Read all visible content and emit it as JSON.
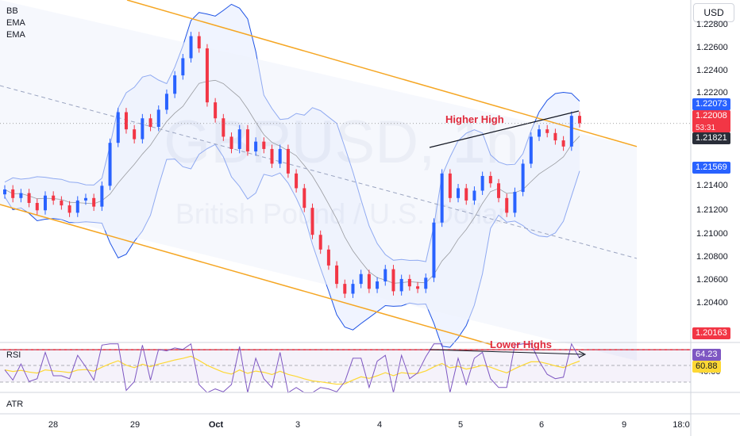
{
  "indicators": {
    "main": [
      "BB",
      "EMA",
      "EMA"
    ],
    "rsi_label": "RSI",
    "atr_label": "ATR"
  },
  "currency_button": "USD",
  "watermark": {
    "symbol": "GBPUSD, 1h",
    "name": "British Pound / U.S. Dollar"
  },
  "annotations": {
    "higher_high": "Higher High",
    "lower_highs": "Lower Highs"
  },
  "price_axis": [
    "1.22800",
    "1.22600",
    "1.22400",
    "1.22200",
    "1.21400",
    "1.21200",
    "1.21000",
    "1.20800",
    "1.20600",
    "1.20400"
  ],
  "price_tags": {
    "blue_top": "1.22073",
    "last": "1.22008",
    "countdown": "53:31",
    "dark": "1.21821",
    "blue_low": "1.21569",
    "red_line": "1.20163"
  },
  "rsi_axis": "40.00",
  "rsi_tags": {
    "rsi": "64.23",
    "ma": "60.88"
  },
  "time_axis": [
    "28",
    "29",
    "Oct",
    "3",
    "4",
    "5",
    "6",
    "9",
    "18:0"
  ],
  "colors": {
    "up": "#2962ff",
    "down": "#f23645",
    "band": "#1e53e5",
    "channel": "#f5a623",
    "red_line": "#f23645",
    "rsi_line": "#7e57c2",
    "rsi_ma": "#fdd835"
  },
  "chart_data": {
    "type": "candlestick",
    "symbol": "GBPUSD",
    "ylim": [
      1.203,
      1.2295
    ],
    "horizontal_line": 1.20163,
    "trend_channel": {
      "upper_end": 1.2182,
      "lower_end": 1.2018
    },
    "bollinger_mid_end": 1.2182,
    "bollinger_upper_end": 1.2207,
    "bollinger_lower_end": 1.2157,
    "last_price": 1.22008,
    "rsi": {
      "value": 64.23,
      "ma": 60.88
    },
    "closes": [
      1.2147,
      1.214,
      1.2144,
      1.2136,
      1.213,
      1.2142,
      1.2138,
      1.2134,
      1.2128,
      1.2138,
      1.214,
      1.2133,
      1.215,
      1.2185,
      1.221,
      1.2196,
      1.2188,
      1.2205,
      1.2198,
      1.2212,
      1.2225,
      1.224,
      1.2254,
      1.2272,
      1.2262,
      1.2218,
      1.2205,
      1.219,
      1.218,
      1.2196,
      1.2178,
      1.2186,
      1.218,
      1.2168,
      1.218,
      1.216,
      1.2148,
      1.2132,
      1.211,
      1.2098,
      1.2085,
      1.207,
      1.2062,
      1.207,
      1.2078,
      1.2066,
      1.2072,
      1.2082,
      1.2064,
      1.2074,
      1.2068,
      1.2066,
      1.2075,
      1.212,
      1.216,
      1.214,
      1.2148,
      1.2138,
      1.2146,
      1.2158,
      1.2152,
      1.214,
      1.2128,
      1.2145,
      1.2168,
      1.219,
      1.2196,
      1.2193,
      1.2187,
      1.2182,
      1.2207,
      1.2201
    ]
  }
}
